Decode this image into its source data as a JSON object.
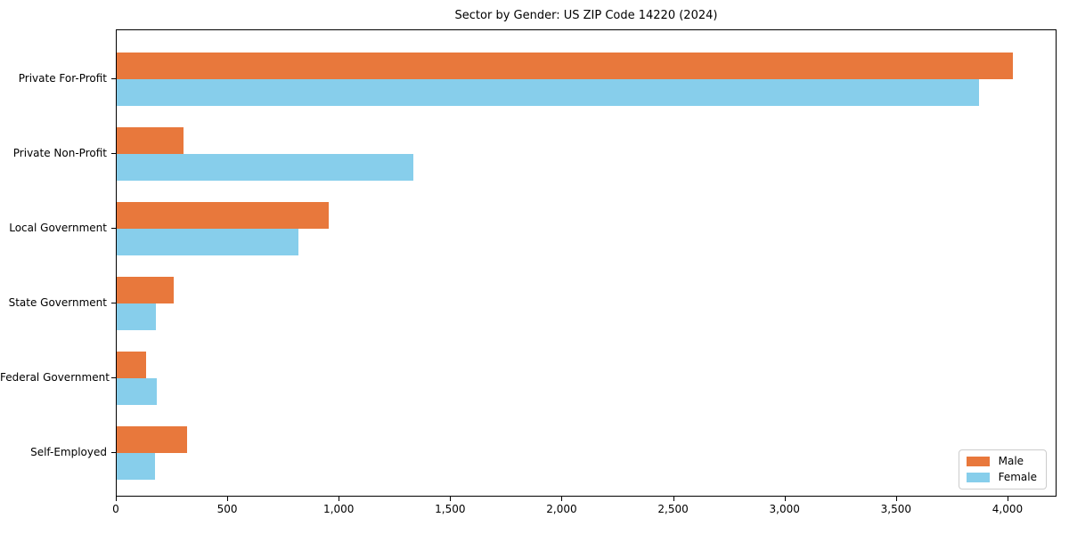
{
  "title": "Sector by Gender: US ZIP Code 14220 (2024)",
  "colors": {
    "male": "#e8783c",
    "female": "#87ceeb",
    "axis": "#000000",
    "legend_border": "#cccccc",
    "background": "#ffffff"
  },
  "legend": {
    "items": [
      {
        "label": "Male",
        "color_key": "male"
      },
      {
        "label": "Female",
        "color_key": "female"
      }
    ]
  },
  "chart_data": {
    "type": "bar",
    "orientation": "horizontal",
    "title": "Sector by Gender: US ZIP Code 14220 (2024)",
    "xlabel": "",
    "ylabel": "",
    "categories": [
      "Private For-Profit",
      "Private Non-Profit",
      "Local Government",
      "State Government",
      "Federal Government",
      "Self-Employed"
    ],
    "series": [
      {
        "name": "Male",
        "color_key": "male",
        "values": [
          4020,
          300,
          950,
          255,
          130,
          315
        ]
      },
      {
        "name": "Female",
        "color_key": "female",
        "values": [
          3870,
          1330,
          815,
          175,
          180,
          170
        ]
      }
    ],
    "xlim": [
      0,
      4220
    ],
    "xticks": [
      0,
      500,
      1000,
      1500,
      2000,
      2500,
      3000,
      3500,
      4000
    ],
    "xtick_labels": [
      "0",
      "500",
      "1,000",
      "1,500",
      "2,000",
      "2,500",
      "3,000",
      "3,500",
      "4,000"
    ],
    "grid": false,
    "legend_position": "lower right"
  }
}
